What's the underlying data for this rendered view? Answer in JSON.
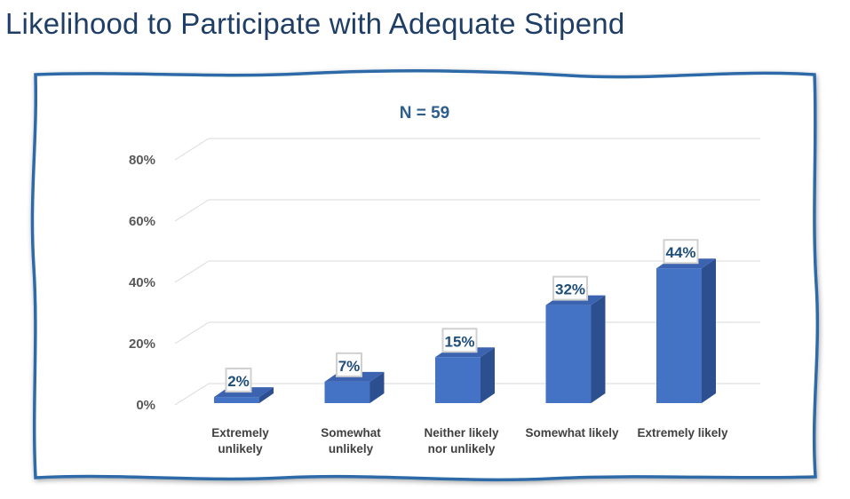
{
  "page": {
    "title": "Likelihood to Participate with Adequate Stipend"
  },
  "chart_data": {
    "type": "bar",
    "title": "Likelihood to Participate with Adequate Stipend",
    "subtitle": "N = 59",
    "categories": [
      [
        "Extremely",
        "unlikely"
      ],
      [
        "Somewhat",
        "unlikely"
      ],
      [
        "Neither likely",
        "nor unlikely"
      ],
      [
        "Somewhat likely"
      ],
      [
        "Extremely likely"
      ]
    ],
    "values": [
      2,
      7,
      15,
      32,
      44
    ],
    "data_labels": [
      "2%",
      "7%",
      "15%",
      "32%",
      "44%"
    ],
    "yticks": [
      0,
      20,
      40,
      60,
      80
    ],
    "ytick_labels": [
      "0%",
      "20%",
      "40%",
      "60%",
      "80%"
    ],
    "ylim": [
      0,
      80
    ],
    "xlabel": "",
    "ylabel": "",
    "grid": true,
    "legend": "none",
    "colors": {
      "bar_front": "#4472c4",
      "bar_side": "#2c4f8f",
      "bar_top": "#3b63b0",
      "grid": "#d9d9d9",
      "frame": "#2e6aa8",
      "label_border": "#d0d0d0"
    }
  }
}
